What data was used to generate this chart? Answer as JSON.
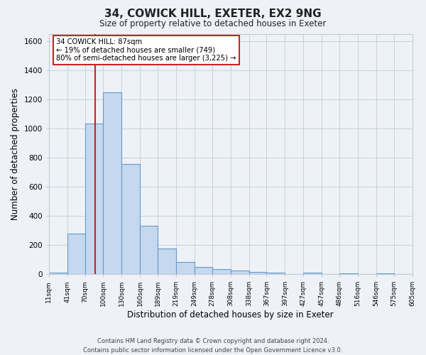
{
  "title": "34, COWICK HILL, EXETER, EX2 9NG",
  "subtitle": "Size of property relative to detached houses in Exeter",
  "xlabel": "Distribution of detached houses by size in Exeter",
  "ylabel": "Number of detached properties",
  "bin_labels": [
    "11sqm",
    "41sqm",
    "70sqm",
    "100sqm",
    "130sqm",
    "160sqm",
    "189sqm",
    "219sqm",
    "249sqm",
    "278sqm",
    "308sqm",
    "338sqm",
    "367sqm",
    "397sqm",
    "427sqm",
    "457sqm",
    "486sqm",
    "516sqm",
    "546sqm",
    "575sqm",
    "605sqm"
  ],
  "bar_heights": [
    10,
    280,
    1035,
    1250,
    755,
    330,
    175,
    85,
    50,
    35,
    25,
    15,
    10,
    0,
    10,
    0,
    5,
    0,
    5,
    0,
    5
  ],
  "bar_color": "#c5d8ee",
  "bar_edge_color": "#6699cc",
  "bin_edges": [
    11,
    41,
    70,
    100,
    130,
    160,
    189,
    219,
    249,
    278,
    308,
    338,
    367,
    397,
    427,
    457,
    486,
    516,
    546,
    575,
    605
  ],
  "property_value": 87,
  "vline_color": "#cc2222",
  "annotation_line1": "34 COWICK HILL: 87sqm",
  "annotation_line2": "← 19% of detached houses are smaller (749)",
  "annotation_line3": "80% of semi-detached houses are larger (3,225) →",
  "annotation_box_edgecolor": "#cc2222",
  "ylim": [
    0,
    1650
  ],
  "yticks": [
    0,
    200,
    400,
    600,
    800,
    1000,
    1200,
    1400,
    1600
  ],
  "footer_line1": "Contains HM Land Registry data © Crown copyright and database right 2024.",
  "footer_line2": "Contains public sector information licensed under the Open Government Licence v3.0.",
  "bg_color": "#eef2f7",
  "plot_bg_color": "#eef2f7",
  "grid_color": "#c0ccd8"
}
